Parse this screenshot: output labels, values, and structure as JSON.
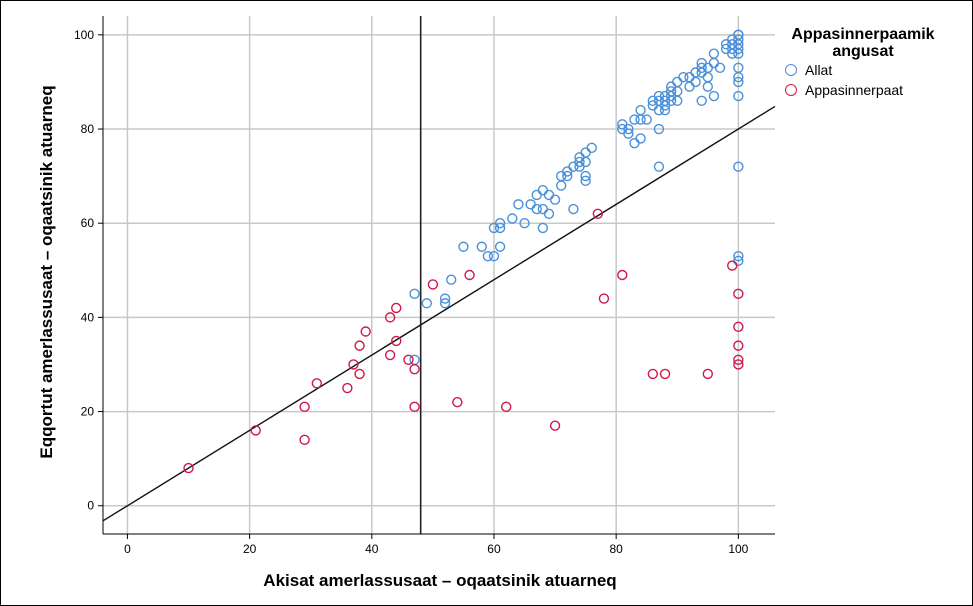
{
  "chart_data": {
    "type": "scatter",
    "title": "",
    "xlabel": "Akisat amerlassusaat – oqaatsinik atuarneq",
    "ylabel": "Eqqortut amerlassusaat – oqaatsinik atuarneq",
    "xlim": [
      -4,
      106
    ],
    "ylim": [
      -6,
      104
    ],
    "xticks": [
      0,
      20,
      40,
      60,
      80,
      100
    ],
    "yticks": [
      0,
      20,
      40,
      60,
      80,
      100
    ],
    "grid": true,
    "legend": {
      "title": "Appasinnerpaamik angusat",
      "placement": "right",
      "entries": [
        "Allat",
        "Appasinnerpaat"
      ]
    },
    "reference_lines": {
      "vertical_x": 48,
      "line_through_origin_slope": 0.8
    },
    "series": [
      {
        "name": "Allat",
        "color": "#4a90d9",
        "points": [
          [
            47,
            45
          ],
          [
            47,
            31
          ],
          [
            49,
            43
          ],
          [
            52,
            43
          ],
          [
            52,
            44
          ],
          [
            53,
            48
          ],
          [
            55,
            55
          ],
          [
            58,
            55
          ],
          [
            59,
            53
          ],
          [
            60,
            53
          ],
          [
            60,
            59
          ],
          [
            61,
            60
          ],
          [
            61,
            59
          ],
          [
            61,
            55
          ],
          [
            63,
            61
          ],
          [
            64,
            64
          ],
          [
            65,
            60
          ],
          [
            66,
            64
          ],
          [
            67,
            63
          ],
          [
            67,
            66
          ],
          [
            68,
            59
          ],
          [
            68,
            63
          ],
          [
            68,
            67
          ],
          [
            69,
            62
          ],
          [
            69,
            66
          ],
          [
            70,
            65
          ],
          [
            71,
            68
          ],
          [
            71,
            70
          ],
          [
            72,
            70
          ],
          [
            72,
            71
          ],
          [
            73,
            63
          ],
          [
            73,
            72
          ],
          [
            74,
            72
          ],
          [
            74,
            74
          ],
          [
            74,
            73
          ],
          [
            75,
            75
          ],
          [
            75,
            69
          ],
          [
            75,
            70
          ],
          [
            75,
            73
          ],
          [
            76,
            76
          ],
          [
            81,
            81
          ],
          [
            81,
            80
          ],
          [
            82,
            80
          ],
          [
            82,
            79
          ],
          [
            83,
            77
          ],
          [
            83,
            82
          ],
          [
            84,
            78
          ],
          [
            84,
            82
          ],
          [
            84,
            84
          ],
          [
            85,
            82
          ],
          [
            86,
            85
          ],
          [
            86,
            86
          ],
          [
            87,
            84
          ],
          [
            87,
            86
          ],
          [
            87,
            87
          ],
          [
            87,
            80
          ],
          [
            87,
            72
          ],
          [
            88,
            84
          ],
          [
            88,
            86
          ],
          [
            88,
            85
          ],
          [
            88,
            87
          ],
          [
            89,
            89
          ],
          [
            89,
            86
          ],
          [
            89,
            88
          ],
          [
            89,
            87
          ],
          [
            90,
            86
          ],
          [
            90,
            88
          ],
          [
            90,
            90
          ],
          [
            91,
            91
          ],
          [
            92,
            91
          ],
          [
            92,
            89
          ],
          [
            93,
            90
          ],
          [
            93,
            92
          ],
          [
            94,
            86
          ],
          [
            94,
            92
          ],
          [
            94,
            93
          ],
          [
            94,
            94
          ],
          [
            95,
            89
          ],
          [
            95,
            91
          ],
          [
            95,
            93
          ],
          [
            96,
            87
          ],
          [
            96,
            94
          ],
          [
            96,
            96
          ],
          [
            97,
            93
          ],
          [
            98,
            97
          ],
          [
            98,
            98
          ],
          [
            99,
            96
          ],
          [
            99,
            97
          ],
          [
            99,
            98
          ],
          [
            99,
            99
          ],
          [
            100,
            100
          ],
          [
            100,
            99
          ],
          [
            100,
            98
          ],
          [
            100,
            97
          ],
          [
            100,
            96
          ],
          [
            100,
            100
          ],
          [
            100,
            93
          ],
          [
            100,
            91
          ],
          [
            100,
            90
          ],
          [
            100,
            87
          ],
          [
            100,
            72
          ],
          [
            100,
            53
          ],
          [
            100,
            52
          ]
        ]
      },
      {
        "name": "Appasinnerpaat",
        "color": "#d0184a",
        "points": [
          [
            10,
            8
          ],
          [
            21,
            16
          ],
          [
            29,
            14
          ],
          [
            29,
            21
          ],
          [
            31,
            26
          ],
          [
            36,
            25
          ],
          [
            37,
            30
          ],
          [
            38,
            28
          ],
          [
            38,
            34
          ],
          [
            39,
            37
          ],
          [
            43,
            32
          ],
          [
            43,
            40
          ],
          [
            44,
            42
          ],
          [
            44,
            35
          ],
          [
            46,
            31
          ],
          [
            47,
            29
          ],
          [
            47,
            21
          ],
          [
            50,
            47
          ],
          [
            54,
            22
          ],
          [
            56,
            49
          ],
          [
            62,
            21
          ],
          [
            70,
            17
          ],
          [
            77,
            62
          ],
          [
            78,
            44
          ],
          [
            81,
            49
          ],
          [
            86,
            28
          ],
          [
            88,
            28
          ],
          [
            95,
            28
          ],
          [
            99,
            51
          ],
          [
            100,
            45
          ],
          [
            100,
            38
          ],
          [
            100,
            34
          ],
          [
            100,
            31
          ],
          [
            100,
            30
          ]
        ]
      }
    ]
  }
}
